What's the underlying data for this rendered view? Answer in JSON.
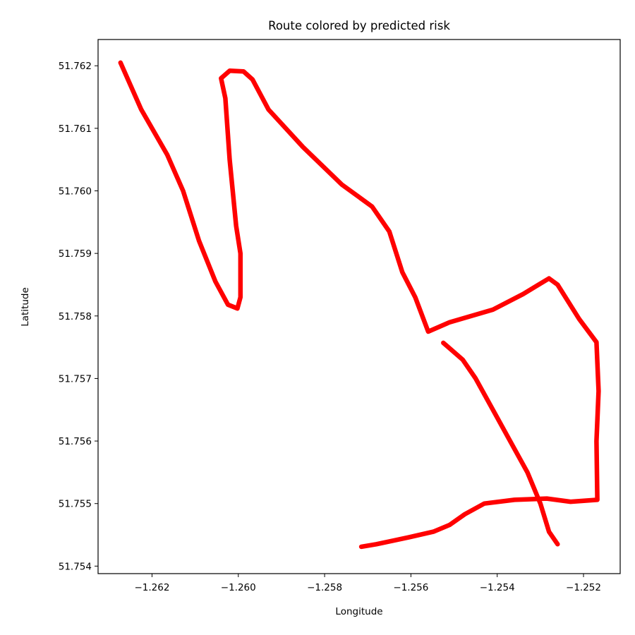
{
  "chart_data": {
    "type": "line",
    "title": "Route colored by predicted risk",
    "xlabel": "Longitude",
    "ylabel": "Latitude",
    "xlim": [
      -1.26325,
      -1.25115
    ],
    "ylim": [
      51.75388,
      51.76242
    ],
    "grid": false,
    "legend": "none",
    "line_color": "#ff0000",
    "x_ticks": [
      -1.262,
      -1.26,
      -1.258,
      -1.256,
      -1.254,
      -1.252
    ],
    "x_tick_labels": [
      "−1.262",
      "−1.260",
      "−1.258",
      "−1.256",
      "−1.254",
      "−1.252"
    ],
    "y_ticks": [
      51.754,
      51.755,
      51.756,
      51.757,
      51.758,
      51.759,
      51.76,
      51.761,
      51.762
    ],
    "y_tick_labels": [
      "51.754",
      "51.755",
      "51.756",
      "51.757",
      "51.758",
      "51.759",
      "51.760",
      "51.761",
      "51.762"
    ],
    "series": [
      {
        "points": [
          [
            -1.26273,
            51.76205
          ],
          [
            -1.26225,
            51.7613
          ],
          [
            -1.26165,
            51.76058
          ],
          [
            -1.26128,
            51.76
          ],
          [
            -1.26091,
            51.7592
          ],
          [
            -1.26053,
            51.75855
          ],
          [
            -1.26024,
            51.75818
          ],
          [
            -1.26002,
            51.75812
          ],
          [
            -1.25995,
            51.7583
          ],
          [
            -1.25995,
            51.759
          ],
          [
            -1.26005,
            51.75944
          ],
          [
            -1.2602,
            51.7605
          ],
          [
            -1.2603,
            51.76148
          ],
          [
            -1.2604,
            51.7618
          ],
          [
            -1.2602,
            51.76192
          ],
          [
            -1.25988,
            51.76191
          ],
          [
            -1.25967,
            51.76178
          ],
          [
            -1.2593,
            51.7613
          ],
          [
            -1.2585,
            51.7607
          ],
          [
            -1.2576,
            51.7601
          ],
          [
            -1.2569,
            51.75975
          ],
          [
            -1.2565,
            51.75935
          ],
          [
            -1.2562,
            51.7587
          ],
          [
            -1.2559,
            51.7583
          ],
          [
            -1.2556,
            51.75775
          ],
          [
            -1.2551,
            51.7579
          ],
          [
            -1.2541,
            51.7581
          ],
          [
            -1.2534,
            51.75835
          ],
          [
            -1.2528,
            51.7586
          ],
          [
            -1.2526,
            51.7585
          ],
          [
            -1.2521,
            51.75795
          ],
          [
            -1.2517,
            51.75758
          ],
          [
            -1.25165,
            51.7568
          ],
          [
            -1.2517,
            51.756
          ],
          [
            -1.25168,
            51.75506
          ],
          [
            -1.2523,
            51.75503
          ],
          [
            -1.25285,
            51.75508
          ],
          [
            -1.2536,
            51.75506
          ],
          [
            -1.2543,
            51.755
          ],
          [
            -1.25475,
            51.75483
          ],
          [
            -1.2551,
            51.75466
          ],
          [
            -1.25548,
            51.75455
          ],
          [
            -1.25605,
            51.75446
          ],
          [
            -1.2568,
            51.75435
          ],
          [
            -1.25715,
            51.75431
          ]
        ]
      },
      {
        "points": [
          [
            -1.25525,
            51.75757
          ],
          [
            -1.2548,
            51.7573
          ],
          [
            -1.2545,
            51.757
          ],
          [
            -1.2541,
            51.7565
          ],
          [
            -1.2537,
            51.756
          ],
          [
            -1.2533,
            51.7555
          ],
          [
            -1.253,
            51.755
          ],
          [
            -1.2528,
            51.75455
          ],
          [
            -1.2526,
            51.75435
          ]
        ]
      }
    ]
  }
}
